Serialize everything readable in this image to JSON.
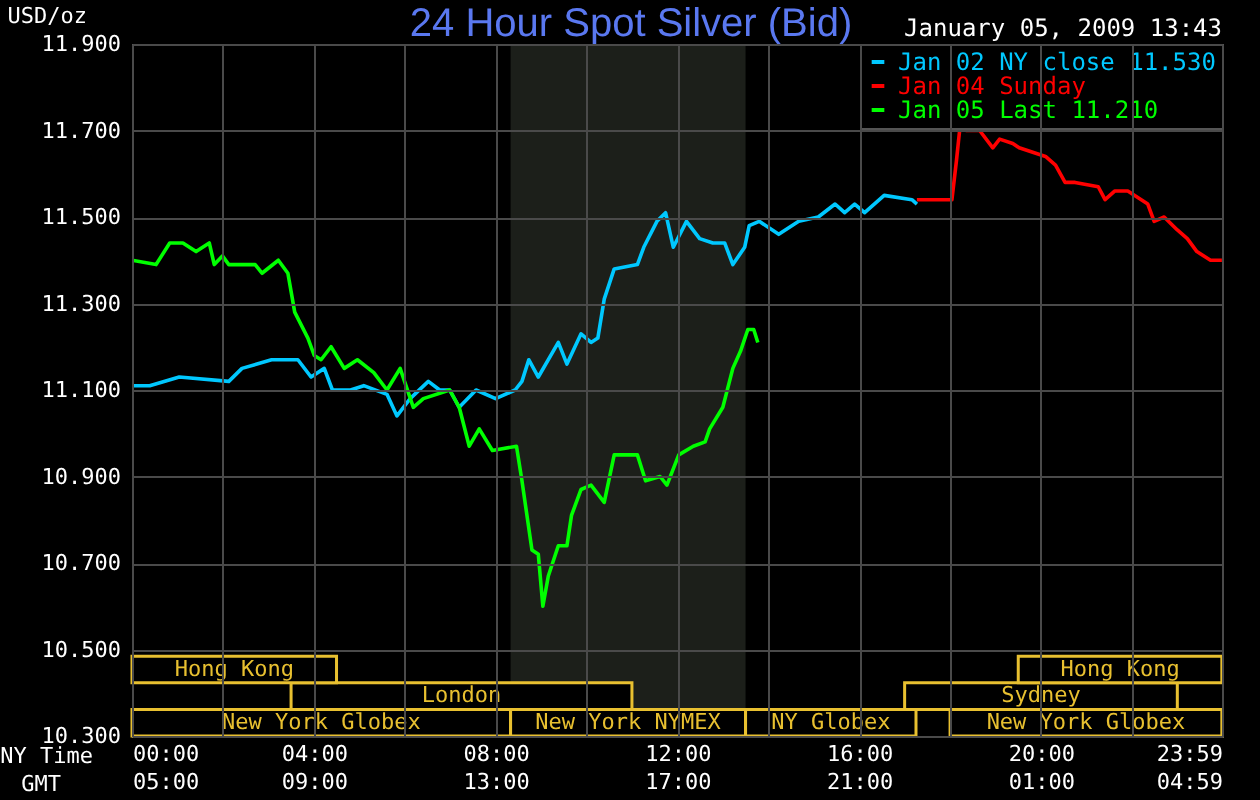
{
  "chart_data": {
    "type": "line",
    "title": "24 Hour Spot Silver (Bid)",
    "subtitle": "January 05, 2009 13:43",
    "ylabel": "USD/oz",
    "xlabel": "NY Time",
    "x2label": "GMT",
    "xlim": [
      0,
      23.983
    ],
    "xticks": [
      {
        "value": 0,
        "label": "00:00"
      },
      {
        "value": 2,
        "label": null
      },
      {
        "value": 4,
        "label": "04:00"
      },
      {
        "value": 6,
        "label": null
      },
      {
        "value": 8,
        "label": "08:00"
      },
      {
        "value": 10,
        "label": null
      },
      {
        "value": 12,
        "label": "12:00"
      },
      {
        "value": 14,
        "label": null
      },
      {
        "value": 16,
        "label": "16:00"
      },
      {
        "value": 18,
        "label": null
      },
      {
        "value": 20,
        "label": "20:00"
      },
      {
        "value": 22,
        "label": null
      },
      {
        "value": 23.983,
        "label": "23:59"
      }
    ],
    "x2lim": [
      "2009-01-05T05:00",
      "2009-01-06T04:59"
    ],
    "x2ticks": [
      {
        "value": "2009-01-05T05:00",
        "label": "05:00"
      },
      {
        "value": "2009-01-05T09:00",
        "label": "09:00"
      },
      {
        "value": "2009-01-05T13:00",
        "label": "13:00"
      },
      {
        "value": "2009-01-05T17:00",
        "label": "17:00"
      },
      {
        "value": "2009-01-05T21:00",
        "label": "21:00"
      },
      {
        "value": "2009-01-06T01:00",
        "label": "01:00"
      },
      {
        "value": "2009-01-06T04:59",
        "label": "04:59"
      }
    ],
    "ylim": [
      10.3,
      11.9
    ],
    "yticks": [
      {
        "value": 10.3,
        "label": "10.300"
      },
      {
        "value": 10.5,
        "label": "10.500"
      },
      {
        "value": 10.7,
        "label": "10.700"
      },
      {
        "value": 10.9,
        "label": "10.900"
      },
      {
        "value": 11.1,
        "label": "11.100"
      },
      {
        "value": 11.3,
        "label": "11.300"
      },
      {
        "value": 11.5,
        "label": "11.500"
      },
      {
        "value": 11.7,
        "label": "11.700"
      },
      {
        "value": 11.9,
        "label": "11.900"
      }
    ],
    "grid": true,
    "legend": "top right",
    "bands": [
      {
        "axis": "x",
        "from": 8.33,
        "to": 13.5,
        "color": "#1c1f1a"
      }
    ],
    "annotations": [
      "New York Globex",
      "New York NYMEX",
      "NY Globex",
      "New York Globex",
      "London",
      "Sydney",
      "Hong Kong",
      "Hong Kong"
    ],
    "series": [
      {
        "name": "Jan 02 NY close 11.530",
        "color": "#00c8ff",
        "x": [
          0,
          0.39,
          1.04,
          2.13,
          2.42,
          3.07,
          3.65,
          3.94,
          4.23,
          4.41,
          4.81,
          5.1,
          5.61,
          5.83,
          6.12,
          6.52,
          6.77,
          6.99,
          7.2,
          7.57,
          8.0,
          8.43,
          8.58,
          8.73,
          8.94,
          9.38,
          9.57,
          9.88,
          10.1,
          10.25,
          10.39,
          10.61,
          11.12,
          11.26,
          11.55,
          11.74,
          11.91,
          12.2,
          12.49,
          12.78,
          13.04,
          13.22,
          13.48,
          13.58,
          13.8,
          14.23,
          14.67,
          15.1,
          15.47,
          15.68,
          15.9,
          16.12,
          16.55,
          17.16,
          17.27
        ],
        "values": [
          11.11,
          11.11,
          11.13,
          11.12,
          11.15,
          11.17,
          11.17,
          11.13,
          11.15,
          11.1,
          11.1,
          11.11,
          11.09,
          11.04,
          11.08,
          11.12,
          11.1,
          11.1,
          11.06,
          11.1,
          11.08,
          11.1,
          11.12,
          11.17,
          11.13,
          11.21,
          11.16,
          11.23,
          11.21,
          11.22,
          11.31,
          11.38,
          11.39,
          11.43,
          11.49,
          11.51,
          11.43,
          11.49,
          11.45,
          11.44,
          11.44,
          11.39,
          11.43,
          11.48,
          11.49,
          11.46,
          11.49,
          11.5,
          11.53,
          11.51,
          11.53,
          11.51,
          11.55,
          11.54,
          11.53
        ]
      },
      {
        "name": "Jan 04 Sunday",
        "color": "#ff0000",
        "x": [
          17.27,
          18.04,
          18.14,
          18.22,
          18.36,
          18.65,
          18.94,
          19.09,
          19.38,
          19.52,
          20.1,
          20.32,
          20.53,
          20.75,
          21.26,
          21.41,
          21.62,
          21.91,
          22.35,
          22.49,
          22.71,
          23.0,
          23.22,
          23.43,
          23.73,
          23.98
        ],
        "values": [
          11.54,
          11.54,
          11.63,
          11.71,
          11.7,
          11.7,
          11.66,
          11.68,
          11.67,
          11.66,
          11.64,
          11.62,
          11.58,
          11.58,
          11.57,
          11.54,
          11.56,
          11.56,
          11.53,
          11.49,
          11.5,
          11.47,
          11.45,
          11.42,
          11.4,
          11.4
        ]
      },
      {
        "name": "Jan 05 Last 11.210",
        "color": "#00ff00",
        "x": [
          0,
          0.53,
          0.83,
          1.12,
          1.41,
          1.7,
          1.81,
          1.99,
          2.13,
          2.71,
          2.86,
          3.22,
          3.43,
          3.58,
          3.87,
          4.01,
          4.16,
          4.38,
          4.67,
          4.96,
          5.32,
          5.61,
          5.9,
          6.19,
          6.41,
          6.99,
          7.2,
          7.42,
          7.64,
          7.93,
          8.46,
          8.58,
          8.8,
          8.94,
          9.04,
          9.16,
          9.38,
          9.57,
          9.67,
          9.88,
          10.1,
          10.39,
          10.61,
          10.9,
          11.12,
          11.3,
          11.62,
          11.77,
          12.03,
          12.35,
          12.61,
          12.71,
          13.0,
          13.22,
          13.39,
          13.55,
          13.68,
          13.77
        ],
        "values": [
          11.4,
          11.39,
          11.44,
          11.44,
          11.42,
          11.44,
          11.39,
          11.41,
          11.39,
          11.39,
          11.37,
          11.4,
          11.37,
          11.28,
          11.22,
          11.18,
          11.17,
          11.2,
          11.15,
          11.17,
          11.14,
          11.1,
          11.15,
          11.06,
          11.08,
          11.1,
          11.06,
          10.97,
          11.01,
          10.96,
          10.97,
          10.89,
          10.73,
          10.72,
          10.6,
          10.67,
          10.74,
          10.74,
          10.81,
          10.87,
          10.88,
          10.84,
          10.95,
          10.95,
          10.95,
          10.89,
          10.9,
          10.88,
          10.95,
          10.97,
          10.98,
          11.01,
          11.06,
          11.15,
          11.19,
          11.24,
          11.24,
          11.21
        ]
      }
    ]
  }
}
